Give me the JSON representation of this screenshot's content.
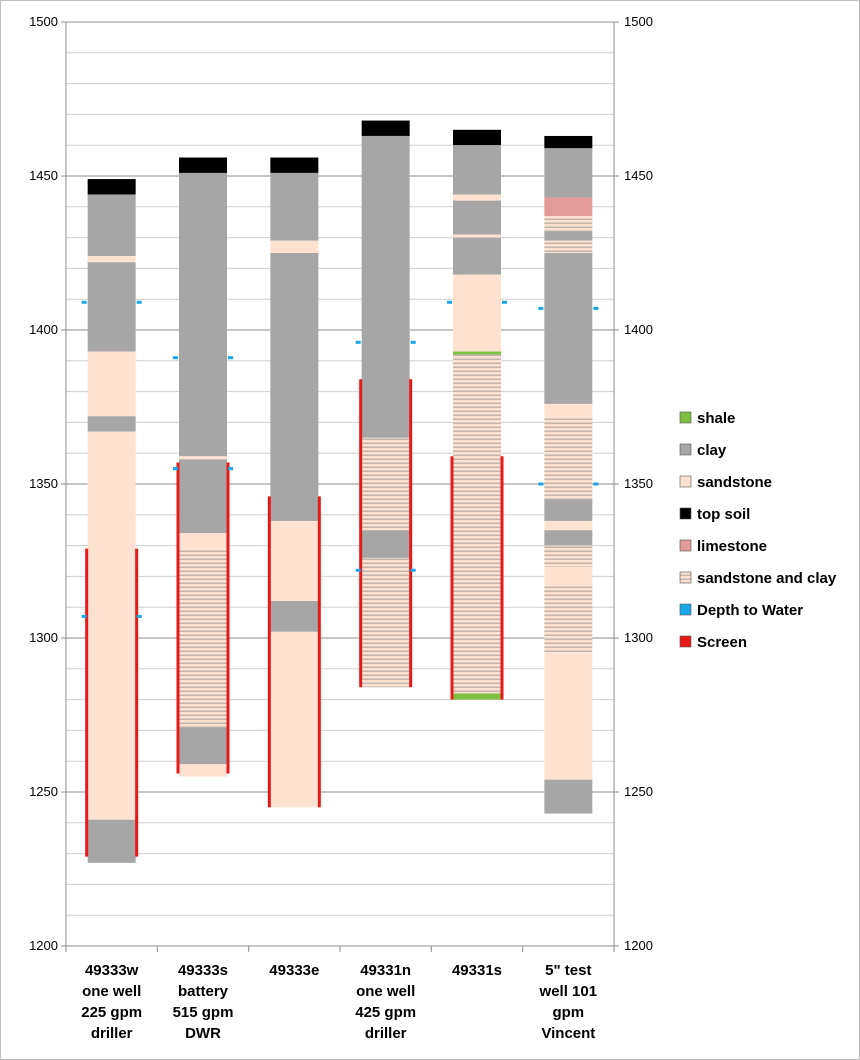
{
  "chart_data": {
    "type": "bar",
    "title": "",
    "xlabel": "",
    "ylabel": "",
    "ylim": [
      1200,
      1500
    ],
    "y_ticks": [
      "1200",
      "1250",
      "1300",
      "1350",
      "1400",
      "1450",
      "1500"
    ],
    "minor_gridlines_every": 10,
    "secondary_axis": true,
    "legend_position": "right",
    "categories": [
      [
        "49333w",
        "one well",
        "225 gpm",
        "driller"
      ],
      [
        "49333s",
        "battery",
        "515 gpm",
        "DWR"
      ],
      [
        "49333e"
      ],
      [
        "49331n",
        "one well",
        "425 gpm",
        "driller"
      ],
      [
        "49331s"
      ],
      [
        "5\" test",
        "well 101",
        "gpm",
        "Vincent"
      ]
    ],
    "legend": [
      {
        "key": "shale",
        "label": "shale",
        "color": "#7ec142"
      },
      {
        "key": "clay",
        "label": "clay",
        "color": "#a6a6a6"
      },
      {
        "key": "sandstone",
        "label": "sandstone",
        "color": "#fde2d2"
      },
      {
        "key": "topsoil",
        "label": "top soil",
        "color": "#000000"
      },
      {
        "key": "limestone",
        "label": "limestone",
        "color": "#e39a9a"
      },
      {
        "key": "sandclay",
        "label": "sandstone and clay",
        "color": "#e6d9d0"
      },
      {
        "key": "water",
        "label": "Depth to Water",
        "color": "#19a6e8"
      },
      {
        "key": "screen",
        "label": "Screen",
        "color": "#e81919"
      }
    ],
    "wells": [
      {
        "layers": [
          {
            "top": 1449,
            "bottom": 1444,
            "type": "topsoil"
          },
          {
            "top": 1444,
            "bottom": 1424,
            "type": "clay"
          },
          {
            "top": 1424,
            "bottom": 1422,
            "type": "sandstone"
          },
          {
            "top": 1422,
            "bottom": 1393,
            "type": "clay"
          },
          {
            "top": 1393,
            "bottom": 1372,
            "type": "sandstone"
          },
          {
            "top": 1372,
            "bottom": 1367,
            "type": "clay"
          },
          {
            "top": 1367,
            "bottom": 1241,
            "type": "sandstone"
          },
          {
            "top": 1241,
            "bottom": 1227,
            "type": "clay"
          }
        ],
        "water": [
          1409,
          1307
        ],
        "screen": [
          1329,
          1229
        ]
      },
      {
        "layers": [
          {
            "top": 1456,
            "bottom": 1451,
            "type": "topsoil"
          },
          {
            "top": 1451,
            "bottom": 1359,
            "type": "clay"
          },
          {
            "top": 1359,
            "bottom": 1358,
            "type": "sandstone"
          },
          {
            "top": 1358,
            "bottom": 1334,
            "type": "clay"
          },
          {
            "top": 1334,
            "bottom": 1329,
            "type": "sandstone"
          },
          {
            "top": 1329,
            "bottom": 1271,
            "type": "sandclay"
          },
          {
            "top": 1271,
            "bottom": 1259,
            "type": "clay"
          },
          {
            "top": 1259,
            "bottom": 1255,
            "type": "sandstone"
          }
        ],
        "water": [
          1391,
          1355
        ],
        "screen": [
          1357,
          1256
        ]
      },
      {
        "layers": [
          {
            "top": 1456,
            "bottom": 1451,
            "type": "topsoil"
          },
          {
            "top": 1451,
            "bottom": 1429,
            "type": "clay"
          },
          {
            "top": 1429,
            "bottom": 1425,
            "type": "sandstone"
          },
          {
            "top": 1425,
            "bottom": 1338,
            "type": "clay"
          },
          {
            "top": 1338,
            "bottom": 1312,
            "type": "sandstone"
          },
          {
            "top": 1312,
            "bottom": 1302,
            "type": "clay"
          },
          {
            "top": 1302,
            "bottom": 1245,
            "type": "sandstone"
          }
        ],
        "water": [],
        "screen": [
          1346,
          1245
        ]
      },
      {
        "layers": [
          {
            "top": 1468,
            "bottom": 1463,
            "type": "topsoil"
          },
          {
            "top": 1463,
            "bottom": 1365,
            "type": "clay"
          },
          {
            "top": 1365,
            "bottom": 1335,
            "type": "sandclay"
          },
          {
            "top": 1335,
            "bottom": 1326,
            "type": "clay"
          },
          {
            "top": 1326,
            "bottom": 1284,
            "type": "sandclay"
          }
        ],
        "water": [
          1396,
          1322
        ],
        "screen": [
          1384,
          1284
        ]
      },
      {
        "layers": [
          {
            "top": 1465,
            "bottom": 1460,
            "type": "topsoil"
          },
          {
            "top": 1460,
            "bottom": 1444,
            "type": "clay"
          },
          {
            "top": 1444,
            "bottom": 1442,
            "type": "sandstone"
          },
          {
            "top": 1442,
            "bottom": 1431,
            "type": "clay"
          },
          {
            "top": 1431,
            "bottom": 1430,
            "type": "sandstone"
          },
          {
            "top": 1430,
            "bottom": 1418,
            "type": "clay"
          },
          {
            "top": 1418,
            "bottom": 1393,
            "type": "sandstone"
          },
          {
            "top": 1393,
            "bottom": 1392,
            "type": "shale"
          },
          {
            "top": 1392,
            "bottom": 1282,
            "type": "sandclay"
          },
          {
            "top": 1282,
            "bottom": 1280,
            "type": "shale"
          }
        ],
        "water": [
          1409
        ],
        "screen": [
          1359,
          1280
        ]
      },
      {
        "layers": [
          {
            "top": 1463,
            "bottom": 1459,
            "type": "topsoil"
          },
          {
            "top": 1459,
            "bottom": 1443,
            "type": "clay"
          },
          {
            "top": 1443,
            "bottom": 1437,
            "type": "limestone"
          },
          {
            "top": 1437,
            "bottom": 1432,
            "type": "sandclay"
          },
          {
            "top": 1432,
            "bottom": 1429,
            "type": "clay"
          },
          {
            "top": 1429,
            "bottom": 1425,
            "type": "sandclay"
          },
          {
            "top": 1425,
            "bottom": 1376,
            "type": "clay"
          },
          {
            "top": 1376,
            "bottom": 1372,
            "type": "sandstone"
          },
          {
            "top": 1372,
            "bottom": 1345,
            "type": "sandclay"
          },
          {
            "top": 1345,
            "bottom": 1338,
            "type": "clay"
          },
          {
            "top": 1338,
            "bottom": 1335,
            "type": "sandstone"
          },
          {
            "top": 1335,
            "bottom": 1330,
            "type": "clay"
          },
          {
            "top": 1330,
            "bottom": 1323,
            "type": "sandclay"
          },
          {
            "top": 1323,
            "bottom": 1317,
            "type": "sandstone"
          },
          {
            "top": 1317,
            "bottom": 1295,
            "type": "sandclay"
          },
          {
            "top": 1295,
            "bottom": 1254,
            "type": "sandstone"
          },
          {
            "top": 1254,
            "bottom": 1243,
            "type": "clay"
          }
        ],
        "water": [
          1407,
          1350
        ],
        "screen": []
      }
    ]
  }
}
